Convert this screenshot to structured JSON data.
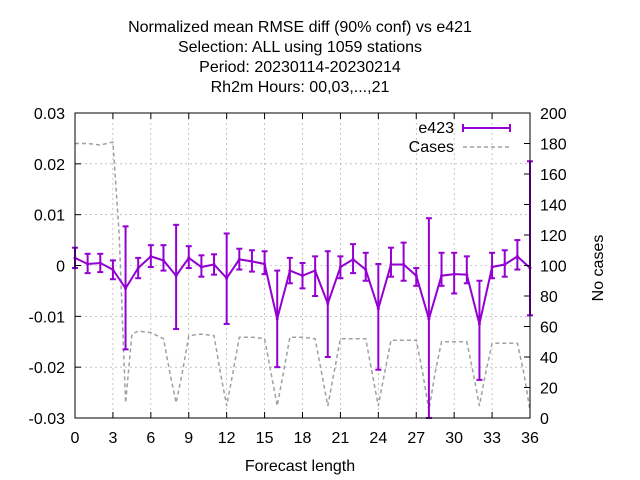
{
  "chart_data": {
    "type": "line",
    "title_lines": [
      "Normalized mean RMSE diff (90% conf) vs e421",
      "Selection: ALL using  1059 stations",
      "Period: 20230114-20230214",
      "Rh2m   Hours:  00,03,...,21"
    ],
    "xlabel": "Forecast length",
    "ylabel_right": "No cases",
    "xlim": [
      0,
      36
    ],
    "ylim": [
      -0.03,
      0.03
    ],
    "y2lim": [
      0,
      200
    ],
    "x_ticks": [
      0,
      3,
      6,
      9,
      12,
      15,
      18,
      21,
      24,
      27,
      30,
      33,
      36
    ],
    "y_ticks": [
      -0.03,
      -0.02,
      -0.01,
      0,
      0.01,
      0.02,
      0.03
    ],
    "y_tick_labels": [
      "-0.03",
      "-0.02",
      "-0.01",
      "0",
      "0.01",
      "0.02",
      "0.03"
    ],
    "y2_ticks": [
      0,
      20,
      40,
      60,
      80,
      100,
      120,
      140,
      160,
      180,
      200
    ],
    "grid": true,
    "legend_position": "top-right",
    "series": [
      {
        "name": "e423",
        "color": "#9400d3",
        "style": "errorbars",
        "points": [
          {
            "x": 0,
            "y": 0.0015,
            "lo": -0.0005,
            "hi": 0.0035
          },
          {
            "x": 1,
            "y": 0.0003,
            "lo": -0.0015,
            "hi": 0.0023
          },
          {
            "x": 2,
            "y": 0.0005,
            "lo": -0.0013,
            "hi": 0.0023
          },
          {
            "x": 3,
            "y": -0.0008,
            "lo": -0.0027,
            "hi": 0.001
          },
          {
            "x": 4,
            "y": -0.0045,
            "lo": -0.0165,
            "hi": 0.0077
          },
          {
            "x": 5,
            "y": -0.0005,
            "lo": -0.0025,
            "hi": 0.0015
          },
          {
            "x": 6,
            "y": 0.0018,
            "lo": -0.0003,
            "hi": 0.004
          },
          {
            "x": 7,
            "y": 0.001,
            "lo": -0.001,
            "hi": 0.004
          },
          {
            "x": 8,
            "y": -0.002,
            "lo": -0.0125,
            "hi": 0.008
          },
          {
            "x": 9,
            "y": 0.0015,
            "lo": -0.0005,
            "hi": 0.0038
          },
          {
            "x": 10,
            "y": -0.0003,
            "lo": -0.0022,
            "hi": 0.002
          },
          {
            "x": 11,
            "y": 0.0002,
            "lo": -0.0018,
            "hi": 0.0022
          },
          {
            "x": 12,
            "y": -0.0025,
            "lo": -0.0115,
            "hi": 0.0063
          },
          {
            "x": 13,
            "y": 0.0012,
            "lo": -0.0008,
            "hi": 0.0033
          },
          {
            "x": 14,
            "y": 0.0008,
            "lo": -0.0012,
            "hi": 0.003
          },
          {
            "x": 15,
            "y": 0.0003,
            "lo": -0.0017,
            "hi": 0.0028
          },
          {
            "x": 16,
            "y": -0.0105,
            "lo": -0.02,
            "hi": -0.001
          },
          {
            "x": 17,
            "y": -0.001,
            "lo": -0.0035,
            "hi": 0.0015
          },
          {
            "x": 18,
            "y": -0.002,
            "lo": -0.0045,
            "hi": 0.0005
          },
          {
            "x": 19,
            "y": -0.001,
            "lo": -0.006,
            "hi": 0.0018
          },
          {
            "x": 20,
            "y": -0.0075,
            "lo": -0.018,
            "hi": 0.0028
          },
          {
            "x": 21,
            "y": -0.0003,
            "lo": -0.0025,
            "hi": 0.0018
          },
          {
            "x": 22,
            "y": 0.0012,
            "lo": -0.0015,
            "hi": 0.0042
          },
          {
            "x": 23,
            "y": -0.0008,
            "lo": -0.003,
            "hi": 0.0025
          },
          {
            "x": 24,
            "y": -0.0085,
            "lo": -0.0205,
            "hi": 0.0003
          },
          {
            "x": 25,
            "y": 0.0002,
            "lo": -0.0022,
            "hi": 0.0035
          },
          {
            "x": 26,
            "y": 0.0002,
            "lo": -0.003,
            "hi": 0.0045
          },
          {
            "x": 27,
            "y": -0.002,
            "lo": -0.004,
            "hi": -0.0005
          },
          {
            "x": 28,
            "y": -0.0105,
            "lo": -0.03,
            "hi": 0.0093
          },
          {
            "x": 29,
            "y": -0.002,
            "lo": -0.004,
            "hi": 0.0025
          },
          {
            "x": 30,
            "y": -0.0017,
            "lo": -0.0055,
            "hi": 0.0025
          },
          {
            "x": 31,
            "y": -0.0018,
            "lo": -0.0035,
            "hi": 0.0018
          },
          {
            "x": 32,
            "y": -0.0115,
            "lo": -0.0225,
            "hi": -0.003
          },
          {
            "x": 33,
            "y": -0.0003,
            "lo": -0.0025,
            "hi": 0.0025
          },
          {
            "x": 34,
            "y": 0.0002,
            "lo": -0.0022,
            "hi": 0.003
          },
          {
            "x": 35,
            "y": 0.0018,
            "lo": -0.0008,
            "hi": 0.005
          },
          {
            "x": 36,
            "y": -0.0005,
            "lo": -0.0098,
            "hi": 0.0205
          }
        ]
      },
      {
        "name": "Cases",
        "color": "#a0a0a0",
        "style": "dashed",
        "axis": "y2",
        "x": [
          0,
          1,
          2,
          3,
          3.5,
          4,
          4.5,
          5,
          6,
          7,
          7.5,
          8,
          8.5,
          9,
          10,
          11,
          11.5,
          12,
          12.5,
          13,
          14,
          15,
          15.5,
          16,
          16.5,
          17,
          18,
          19,
          19.5,
          20,
          20.5,
          21,
          22,
          23,
          23.5,
          24,
          24.5,
          25,
          26,
          27,
          27.5,
          28,
          28.5,
          29,
          30,
          31,
          31.5,
          32,
          32.5,
          33,
          34,
          35,
          35.5,
          36
        ],
        "y": [
          180,
          180,
          179,
          181,
          120,
          10,
          55,
          57,
          56,
          52,
          30,
          10,
          30,
          54,
          55,
          54,
          30,
          8,
          30,
          53,
          53,
          52,
          30,
          8,
          30,
          53,
          53,
          52,
          30,
          8,
          30,
          52,
          52,
          52,
          30,
          8,
          30,
          51,
          51,
          51,
          30,
          5,
          30,
          50,
          50,
          50,
          30,
          8,
          30,
          49,
          49,
          49,
          30,
          5
        ]
      }
    ]
  }
}
